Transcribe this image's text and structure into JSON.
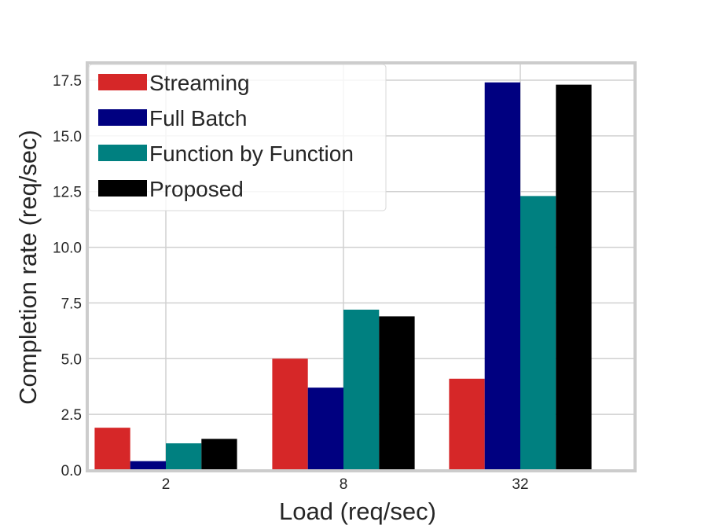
{
  "chart_data": {
    "type": "bar",
    "title": "",
    "xlabel": "Load (req/sec)",
    "ylabel": "Completion rate (req/sec)",
    "categories": [
      "2",
      "8",
      "32"
    ],
    "ylim": [
      0,
      17.5
    ],
    "yticks": [
      "0.0",
      "2.5",
      "5.0",
      "7.5",
      "10.0",
      "12.5",
      "15.0",
      "17.5"
    ],
    "grid": true,
    "legend_position": "upper left",
    "series": [
      {
        "name": "Streaming",
        "color": "#d62728",
        "values": [
          1.9,
          5.0,
          4.1
        ]
      },
      {
        "name": "Full Batch",
        "color": "#000080",
        "values": [
          0.4,
          3.7,
          17.4
        ]
      },
      {
        "name": "Function by Function",
        "color": "#008080",
        "values": [
          1.2,
          7.2,
          12.3
        ]
      },
      {
        "name": "Proposed",
        "color": "#000000",
        "values": [
          1.4,
          6.9,
          17.3
        ]
      }
    ]
  }
}
